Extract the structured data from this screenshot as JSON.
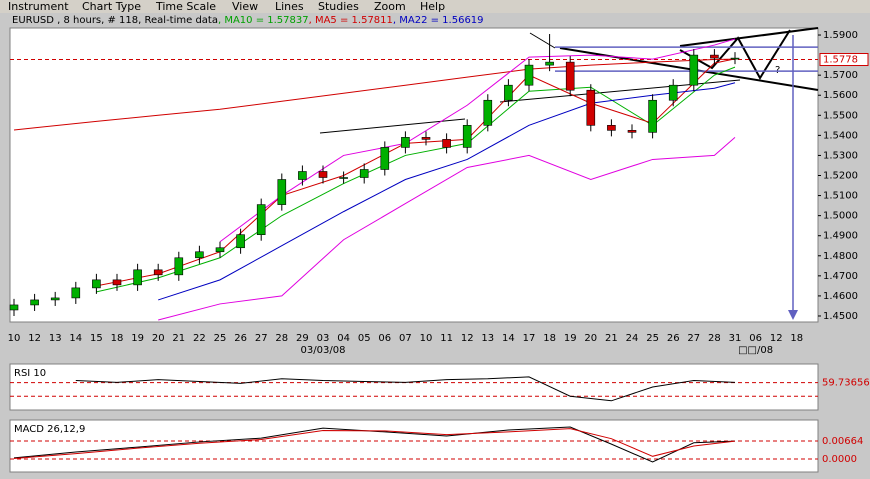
{
  "menu": [
    "Instrument",
    "Chart Type",
    "Time Scale",
    "View",
    "Lines",
    "Studies",
    "Zoom",
    "Help"
  ],
  "chart_data": [
    {
      "type": "candlestick",
      "header": [
        {
          "text": "EURUSD , 8 hours, # 118, Real-time data",
          "color": "#000000"
        },
        {
          "text": ", MA10 = 1.57837",
          "color": "#00a000"
        },
        {
          "text": ", MA5 = 1.57811",
          "color": "#d00000"
        },
        {
          "text": ", MA22 = 1.56619",
          "color": "#0000c0"
        }
      ],
      "categories": [
        "10",
        "12",
        "13",
        "14",
        "15",
        "18",
        "19",
        "20",
        "21",
        "22",
        "25",
        "26",
        "27",
        "28",
        "29",
        "03",
        "04",
        "05",
        "06",
        "07",
        "10",
        "11",
        "12",
        "13",
        "14",
        "17",
        "18",
        "19",
        "20",
        "21",
        "24",
        "25",
        "26",
        "27",
        "28",
        "31",
        "06",
        "12",
        "18"
      ],
      "x_sublabels": [
        null,
        null,
        null,
        null,
        null,
        null,
        null,
        null,
        null,
        null,
        null,
        null,
        null,
        null,
        null,
        "03/03/08",
        null,
        null,
        null,
        null,
        null,
        null,
        null,
        null,
        null,
        null,
        null,
        null,
        null,
        null,
        null,
        null,
        null,
        null,
        null,
        null,
        "□□/08",
        null,
        null
      ],
      "open": [
        1.453,
        1.4555,
        1.458,
        1.459,
        1.464,
        1.468,
        1.4655,
        1.473,
        1.4705,
        1.479,
        1.482,
        1.484,
        1.4905,
        1.5055,
        1.518,
        1.522,
        1.519,
        1.519,
        1.523,
        1.534,
        1.539,
        1.538,
        1.534,
        1.545,
        1.5575,
        1.565,
        1.575,
        1.5765,
        1.5625,
        1.545,
        1.5425,
        1.5415,
        1.5575,
        1.565,
        1.58,
        1.5785,
        null,
        null,
        null
      ],
      "high": [
        1.4585,
        1.461,
        1.462,
        1.467,
        1.471,
        1.471,
        1.476,
        1.476,
        1.482,
        1.485,
        1.487,
        1.4935,
        1.5085,
        1.521,
        1.525,
        1.525,
        1.522,
        1.526,
        1.537,
        1.542,
        1.542,
        1.541,
        1.548,
        1.5605,
        1.568,
        1.578,
        1.5905,
        1.5795,
        1.5655,
        1.548,
        1.5455,
        1.5605,
        1.568,
        1.583,
        1.583,
        1.5815,
        null,
        null,
        null
      ],
      "low": [
        1.45,
        1.4525,
        1.455,
        1.456,
        1.461,
        1.4625,
        1.4625,
        1.4675,
        1.4675,
        1.476,
        1.479,
        1.481,
        1.4875,
        1.5025,
        1.515,
        1.516,
        1.516,
        1.516,
        1.52,
        1.531,
        1.535,
        1.531,
        1.531,
        1.542,
        1.5545,
        1.562,
        1.572,
        1.5595,
        1.542,
        1.5395,
        1.5385,
        1.5385,
        1.5545,
        1.562,
        1.5755,
        1.5755,
        null,
        null,
        null
      ],
      "close": [
        1.4555,
        1.458,
        1.459,
        1.464,
        1.468,
        1.4655,
        1.473,
        1.4705,
        1.479,
        1.482,
        1.484,
        1.4905,
        1.5055,
        1.518,
        1.522,
        1.519,
        1.519,
        1.523,
        1.534,
        1.539,
        1.538,
        1.534,
        1.545,
        1.5575,
        1.565,
        1.575,
        1.5765,
        1.5625,
        1.545,
        1.5425,
        1.5415,
        1.5575,
        1.565,
        1.58,
        1.5785,
        1.5785,
        null,
        null,
        null
      ],
      "up_color": "#00b000",
      "down_color": "#d00000",
      "indicator_x": [
        0,
        4,
        7,
        10,
        13,
        16,
        19,
        22,
        25,
        28,
        31,
        34,
        35
      ],
      "indicators": [
        {
          "color": "#d00000",
          "values": [
            1.5427,
            1.547,
            1.55,
            1.553,
            1.557,
            1.561,
            1.565,
            1.569,
            1.573,
            1.575,
            1.5765,
            1.5778,
            1.578
          ]
        },
        {
          "color": "#00b000",
          "values": [
            null,
            1.462,
            1.469,
            1.479,
            1.5,
            1.516,
            1.53,
            1.536,
            1.562,
            1.564,
            1.545,
            1.57,
            1.574
          ]
        },
        {
          "color": "#d00000",
          "values": [
            null,
            1.465,
            1.471,
            1.482,
            1.51,
            1.52,
            1.536,
            1.538,
            1.57,
            1.556,
            1.546,
            1.576,
            1.5781
          ]
        },
        {
          "color": "#0000c0",
          "values": [
            null,
            null,
            1.458,
            1.468,
            1.485,
            1.502,
            1.518,
            1.528,
            1.545,
            1.556,
            1.56,
            1.5635,
            1.5662
          ]
        },
        {
          "color": "#e000e0",
          "values": [
            null,
            null,
            null,
            1.487,
            1.51,
            1.53,
            1.536,
            1.555,
            1.579,
            1.58,
            1.578,
            1.585,
            1.588
          ]
        },
        {
          "color": "#e000e0",
          "values": [
            null,
            null,
            1.448,
            1.456,
            1.46,
            1.488,
            1.506,
            1.524,
            1.53,
            1.518,
            1.528,
            1.53,
            1.539
          ]
        }
      ],
      "ylim": [
        1.447,
        1.5935
      ],
      "yticks": [
        {
          "value": 1.59,
          "label": "1.5900"
        },
        {
          "value": 1.57,
          "label": "1.5700"
        },
        {
          "value": 1.56,
          "label": "1.5600"
        },
        {
          "value": 1.55,
          "label": "1.5500"
        },
        {
          "value": 1.54,
          "label": "1.5400"
        },
        {
          "value": 1.53,
          "label": "1.5300"
        },
        {
          "value": 1.52,
          "label": "1.5200"
        },
        {
          "value": 1.51,
          "label": "1.5100"
        },
        {
          "value": 1.5,
          "label": "1.5000"
        },
        {
          "value": 1.49,
          "label": "1.4900"
        },
        {
          "value": 1.48,
          "label": "1.4800"
        },
        {
          "value": 1.47,
          "label": "1.4700"
        },
        {
          "value": 1.46,
          "label": "1.4600"
        },
        {
          "value": 1.45,
          "label": "1.4500"
        }
      ],
      "price_level": {
        "value": 1.5778,
        "label": "1.5778"
      },
      "channel": [
        1.584,
        1.572
      ],
      "annotation": "?"
    },
    {
      "type": "line",
      "title": "RSI 10",
      "ylim": [
        30,
        80
      ],
      "levels": [
        59.73656,
        45
      ],
      "x": [
        3,
        5,
        7,
        9,
        11,
        13,
        15,
        17,
        19,
        21,
        23,
        25,
        27,
        29,
        31,
        33,
        35
      ],
      "values": [
        62,
        60,
        63,
        61,
        59,
        64,
        62,
        61,
        60,
        63,
        64,
        66,
        45,
        40,
        55,
        62,
        60
      ],
      "color": "#000000"
    },
    {
      "type": "line",
      "title": "MACD 26,12,9",
      "ylim": [
        -0.0048,
        0.0144
      ],
      "levels": [
        0.00664,
        {
          "value": 0,
          "label": "0.0000"
        }
      ],
      "x": [
        0,
        3,
        6,
        9,
        12,
        15,
        18,
        21,
        24,
        27,
        29,
        31,
        33,
        35
      ],
      "series": [
        {
          "color": "#000000",
          "values": [
            0.0004,
            0.0026,
            0.0044,
            0.0063,
            0.0077,
            0.0114,
            0.01,
            0.0085,
            0.0107,
            0.0118,
            0.0055,
            -0.0011,
            0.006,
            0.0066
          ]
        },
        {
          "color": "#d00000",
          "values": [
            0.0002,
            0.002,
            0.004,
            0.0058,
            0.0072,
            0.0105,
            0.0104,
            0.009,
            0.01,
            0.0112,
            0.0075,
            0.001,
            0.0048,
            0.0066
          ]
        }
      ]
    }
  ]
}
